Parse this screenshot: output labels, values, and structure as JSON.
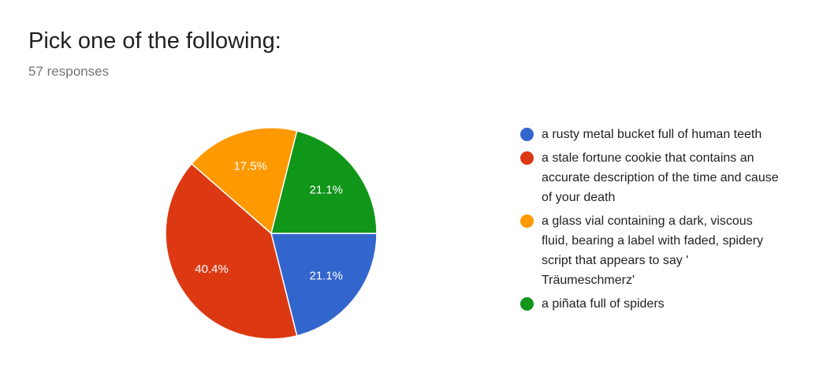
{
  "chart_data": {
    "type": "pie",
    "title": "Pick one of the following:",
    "subtitle": "57 responses",
    "categories": [
      "a rusty metal bucket full of human teeth",
      "a stale fortune cookie that contains an accurate description of the time and cause of your death",
      "a glass vial containing a dark, viscous fluid, bearing a label with faded, spidery script that appears to say ' Träumeschmerz'",
      "a piñata full of spiders"
    ],
    "values": [
      21.1,
      40.4,
      17.5,
      21.1
    ],
    "value_labels": [
      "21.1%",
      "40.4%",
      "17.5%",
      "21.1%"
    ],
    "colors": [
      "#3366cc",
      "#dc3912",
      "#ff9900",
      "#109618"
    ]
  }
}
